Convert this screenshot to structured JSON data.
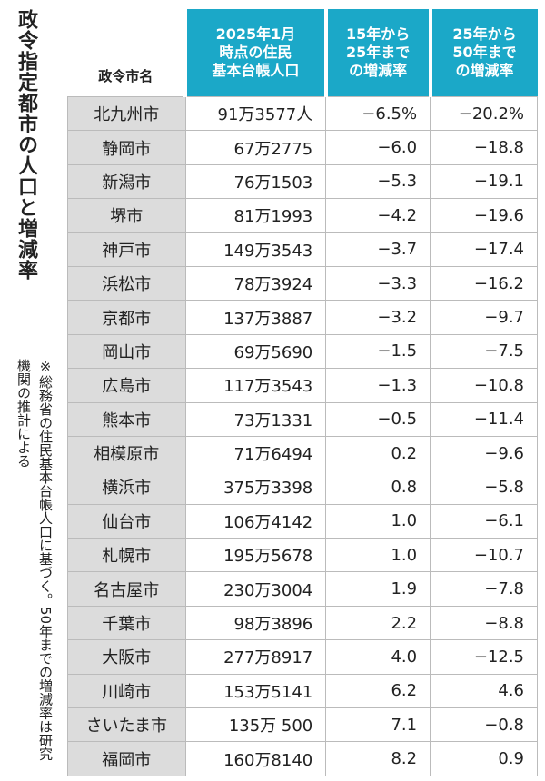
{
  "title": "政令指定都市の人口と増減率",
  "note": "※総務省の住民基本台帳人口に基づく。50年までの増減率は研究機関の推計による",
  "table": {
    "header": [
      [
        "政令市名"
      ],
      [
        "2025年1月",
        "時点の住民",
        "基本台帳人口"
      ],
      [
        "15年から",
        "25年まで",
        "の増減率"
      ],
      [
        "25年から",
        "50年まで",
        "の増減率"
      ]
    ],
    "rows": [
      [
        "北九州市",
        "91万3577人",
        "−6.5%",
        "−20.2%"
      ],
      [
        "静岡市",
        "67万2775",
        "−6.0",
        "−18.8"
      ],
      [
        "新潟市",
        "76万1503",
        "−5.3",
        "−19.1"
      ],
      [
        "堺市",
        "81万1993",
        "−4.2",
        "−19.6"
      ],
      [
        "神戸市",
        "149万3543",
        "−3.7",
        "−17.4"
      ],
      [
        "浜松市",
        "78万3924",
        "−3.3",
        "−16.2"
      ],
      [
        "京都市",
        "137万3887",
        "−3.2",
        "−9.7"
      ],
      [
        "岡山市",
        "69万5690",
        "−1.5",
        "−7.5"
      ],
      [
        "広島市",
        "117万3543",
        "−1.3",
        "−10.8"
      ],
      [
        "熊本市",
        "73万1331",
        "−0.5",
        "−11.4"
      ],
      [
        "相模原市",
        "71万6494",
        "0.2",
        "−9.6"
      ],
      [
        "横浜市",
        "375万3398",
        "0.8",
        "−5.8"
      ],
      [
        "仙台市",
        "106万4142",
        "1.0",
        "−6.1"
      ],
      [
        "札幌市",
        "195万5678",
        "1.0",
        "−10.7"
      ],
      [
        "名古屋市",
        "230万3004",
        "1.9",
        "−7.8"
      ],
      [
        "千葉市",
        "98万3896",
        "2.2",
        "−8.8"
      ],
      [
        "大阪市",
        "277万8917",
        "4.0",
        "−12.5"
      ],
      [
        "川崎市",
        "153万5141",
        "6.2",
        "4.6"
      ],
      [
        "さいたま市",
        "135万 500",
        "7.1",
        "−0.8"
      ],
      [
        "福岡市",
        "160万8140",
        "8.2",
        "0.9"
      ]
    ]
  }
}
